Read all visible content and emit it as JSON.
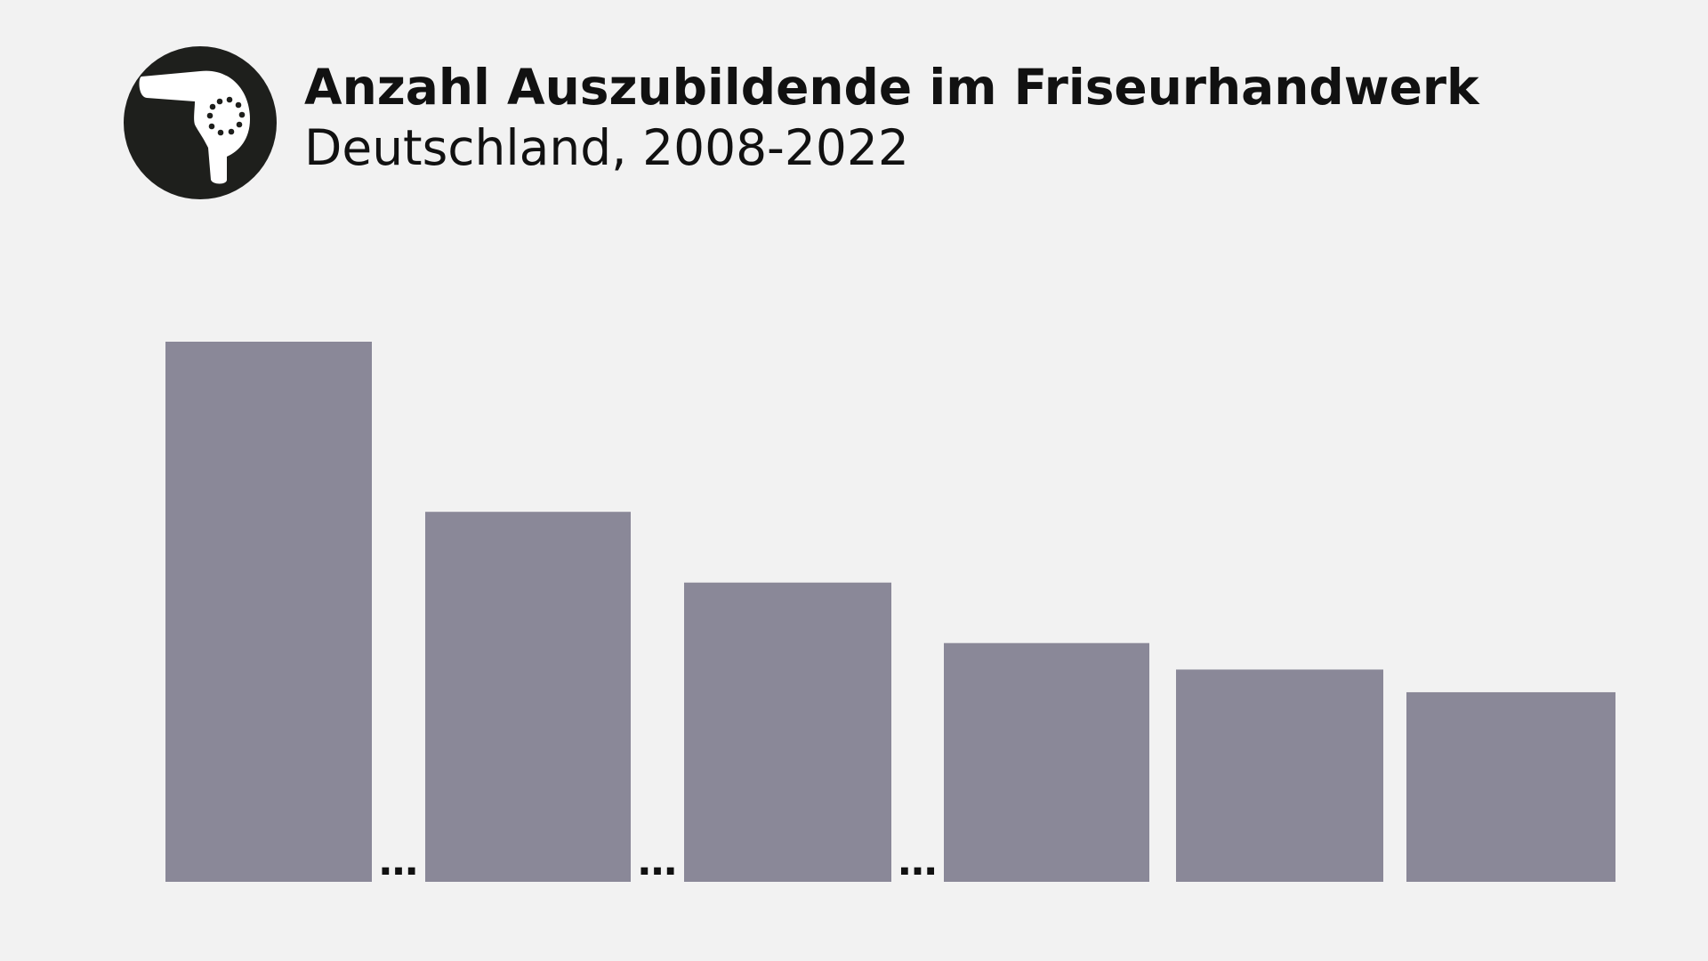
{
  "header": {
    "title": "Anzahl Auszubildende im Friseurhandwerk",
    "subtitle": "Deutschland, 2008-2022",
    "icon": "hair-dryer-icon"
  },
  "colors": {
    "background": "#f2f2f2",
    "bar": "#8a8898",
    "text": "#111111",
    "icon_circle": "#1e1f1c",
    "icon_fill": "#ffffff"
  },
  "chart_data": {
    "type": "bar",
    "title": "Anzahl Auszubildende im Friseurhandwerk",
    "subtitle": "Deutschland, 2008-2022",
    "xlabel": "",
    "ylabel": "",
    "grid": false,
    "legend": "none",
    "ylim": [
      0,
      100
    ],
    "values": [
      100,
      68.5,
      55.4,
      44.2,
      39.3,
      35.1
    ],
    "gap_markers": [
      "…",
      "…",
      "…"
    ],
    "gap_marker_after_index": [
      0,
      1,
      2
    ]
  }
}
